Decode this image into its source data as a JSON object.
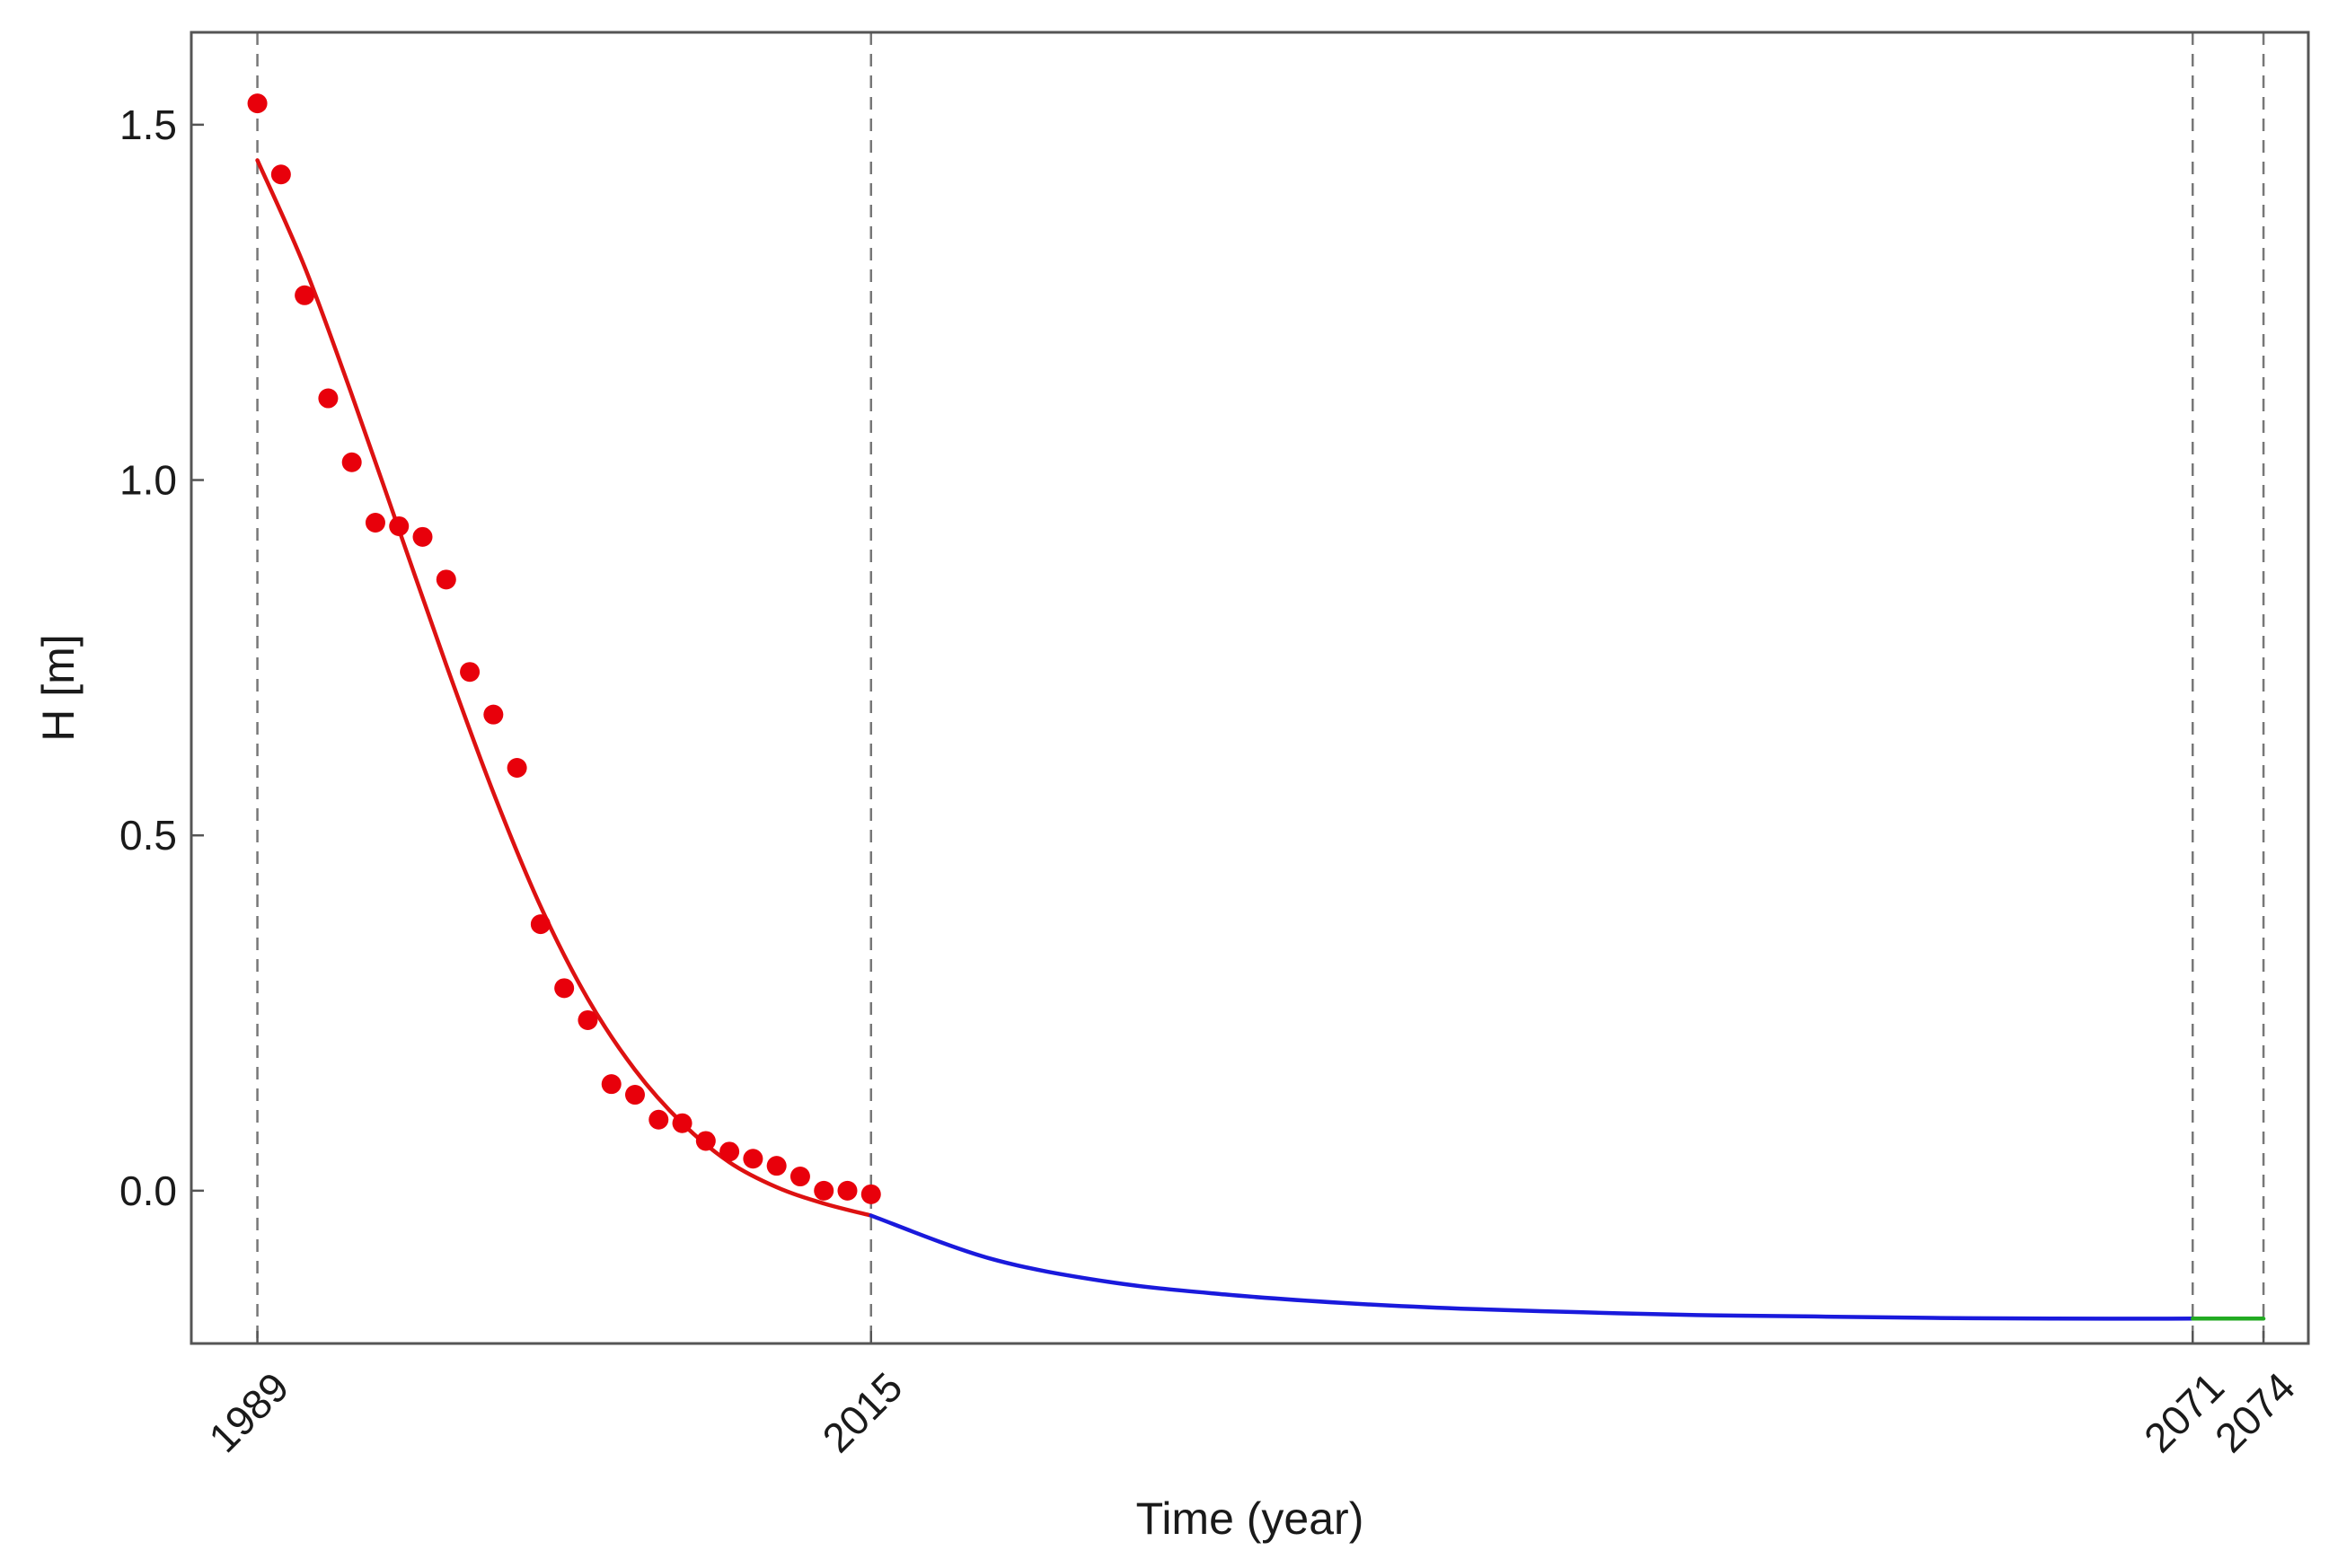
{
  "chart_data": {
    "type": "line",
    "title": "",
    "xlabel": "Time (year)",
    "ylabel": "H [m]",
    "xlim": [
      1986.2,
      2075.9
    ],
    "ylim": [
      -0.215,
      1.63
    ],
    "x_ticks": [
      1989,
      2015,
      2071,
      2074
    ],
    "y_ticks": [
      0.0,
      0.5,
      1.0,
      1.5
    ],
    "y_tick_labels": [
      "0.0",
      "0.5",
      "1.0",
      "1.5"
    ],
    "grid": false,
    "reference_lines_x": [
      1989,
      2015,
      2071,
      2074
    ],
    "legend": "none",
    "colors": {
      "observed_points": "#e8000b",
      "fit_curve": "#dd1111",
      "forecast_curve": "#1a1adc",
      "final_segment": "#22aa22",
      "reference_lines": "#777777",
      "frame": "#555555"
    },
    "series": [
      {
        "kind": "scatter",
        "x": [
          1989,
          1990,
          1991,
          1992,
          1993,
          1994,
          1995,
          1996,
          1997,
          1998,
          1999,
          2000,
          2001,
          2002,
          2003,
          2004,
          2005,
          2006,
          2007,
          2008,
          2009,
          2010,
          2011,
          2012,
          2013,
          2014,
          2015
        ],
        "values": [
          1.53,
          1.43,
          1.26,
          1.115,
          1.025,
          0.94,
          0.935,
          0.92,
          0.86,
          0.73,
          0.67,
          0.595,
          0.375,
          0.285,
          0.24,
          0.15,
          0.135,
          0.1,
          0.095,
          0.07,
          0.055,
          0.045,
          0.035,
          0.02,
          0.0,
          0.0,
          -0.005
        ]
      },
      {
        "kind": "line",
        "x": [
          1989,
          1991,
          1993,
          1995,
          1997,
          1999,
          2001,
          2003,
          2005,
          2007,
          2009,
          2011,
          2013,
          2015
        ],
        "values": [
          1.45,
          1.3,
          1.12,
          0.93,
          0.74,
          0.56,
          0.4,
          0.27,
          0.17,
          0.095,
          0.04,
          0.005,
          -0.018,
          -0.035
        ]
      },
      {
        "kind": "line",
        "x": [
          2015,
          2020,
          2025,
          2030,
          2035,
          2040,
          2045,
          2050,
          2055,
          2060,
          2065,
          2071
        ],
        "values": [
          -0.035,
          -0.095,
          -0.128,
          -0.146,
          -0.158,
          -0.166,
          -0.171,
          -0.175,
          -0.177,
          -0.179,
          -0.18,
          -0.18
        ]
      },
      {
        "kind": "line",
        "x": [
          2071,
          2074
        ],
        "values": [
          -0.18,
          -0.18
        ]
      }
    ]
  }
}
